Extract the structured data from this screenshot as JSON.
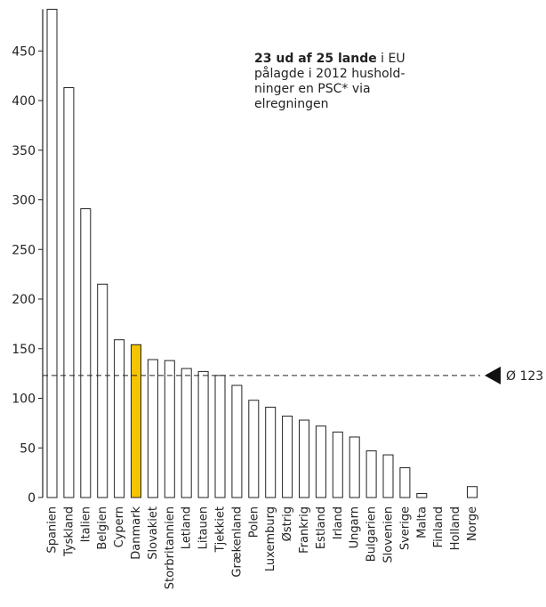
{
  "chart_data": {
    "type": "bar",
    "categories": [
      "Spanien",
      "Tyskland",
      "Italien",
      "Belgien",
      "Cypern",
      "Danmark",
      "Slovakiet",
      "Storbritannien",
      "Letland",
      "Litauen",
      "Tjekkiet",
      "Grækenland",
      "Polen",
      "Luxemburg",
      "Østrig",
      "Frankrig",
      "Estland",
      "Irland",
      "Ungarn",
      "Bulgarien",
      "Slovenien",
      "Sverige",
      "Malta",
      "Finland",
      "Holland",
      "Norge"
    ],
    "values": [
      492,
      413,
      291,
      215,
      159,
      154,
      139,
      138,
      130,
      127,
      123,
      113,
      98,
      91,
      82,
      78,
      72,
      66,
      61,
      47,
      43,
      30,
      4,
      0,
      0,
      11
    ],
    "highlight": "Danmark",
    "highlight_color": "#F5C400",
    "bar_color": "#ffffff",
    "bar_stroke": "#222222",
    "y_ticks": [
      0,
      50,
      100,
      150,
      200,
      250,
      300,
      350,
      400,
      450
    ],
    "ylim": [
      0,
      492
    ],
    "average": {
      "value": 123,
      "label": "Ø 123"
    },
    "grid": false
  },
  "annotation": {
    "bold": "23 ud af 25 lande",
    "text": " i EU pålagde i 2012 hushold-ninger en PSC* via elregningen"
  }
}
